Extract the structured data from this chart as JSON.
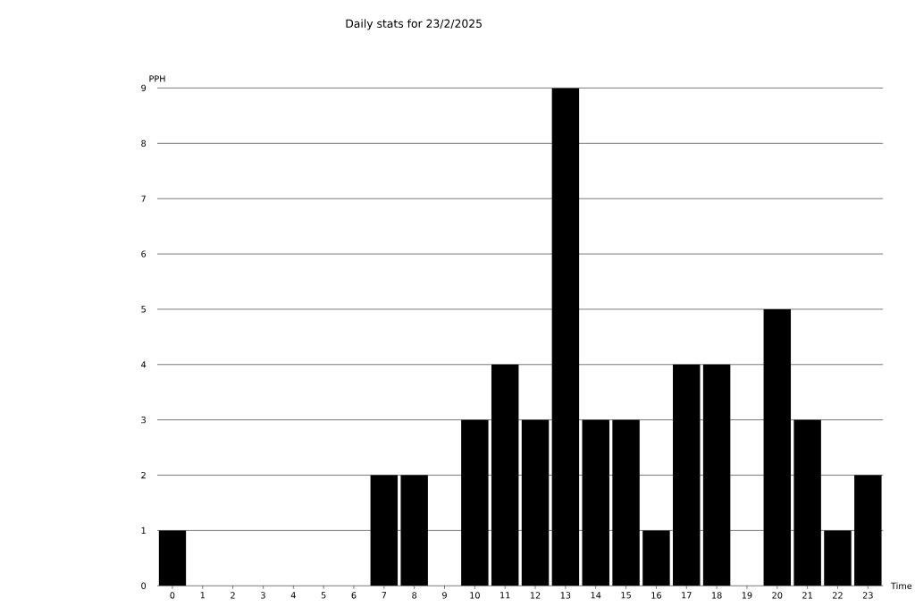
{
  "chart_data": {
    "type": "bar",
    "title": "Daily stats for 23/2/2025",
    "xlabel": "Time",
    "ylabel": "PPH",
    "categories": [
      "0",
      "1",
      "2",
      "3",
      "4",
      "5",
      "6",
      "7",
      "8",
      "9",
      "10",
      "11",
      "12",
      "13",
      "14",
      "15",
      "16",
      "17",
      "18",
      "19",
      "20",
      "21",
      "22",
      "23"
    ],
    "values": [
      1,
      0,
      0,
      0,
      0,
      0,
      0,
      2,
      2,
      0,
      3,
      4,
      3,
      9,
      3,
      3,
      1,
      4,
      4,
      0,
      5,
      3,
      1,
      2
    ],
    "color": "#000000",
    "ylim": [
      0,
      9
    ],
    "yticks": [
      0,
      1,
      2,
      3,
      4,
      5,
      6,
      7,
      8,
      9
    ],
    "grid": "y"
  }
}
